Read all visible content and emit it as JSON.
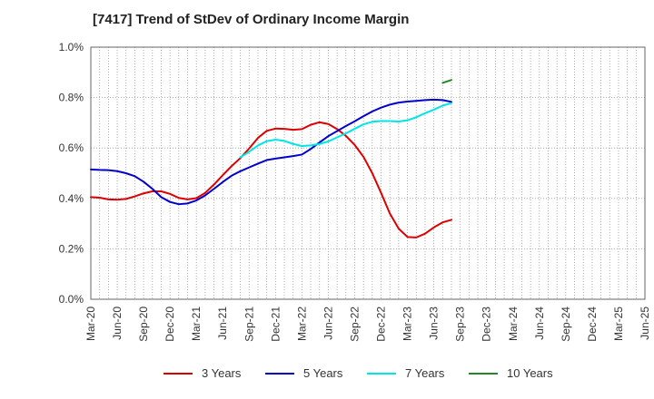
{
  "chart_data": {
    "type": "line",
    "title": "[7417]  Trend of StDev of Ordinary Income Margin",
    "xlabel": "",
    "ylabel": "",
    "ylim": [
      0,
      1.0
    ],
    "y_ticks": [
      "0.0%",
      "0.2%",
      "0.4%",
      "0.6%",
      "0.8%",
      "1.0%"
    ],
    "x_ticks": [
      "Mar-20",
      "Jun-20",
      "Sep-20",
      "Dec-20",
      "Mar-21",
      "Jun-21",
      "Sep-21",
      "Dec-21",
      "Mar-22",
      "Jun-22",
      "Sep-22",
      "Dec-22",
      "Mar-23",
      "Jun-23",
      "Sep-23",
      "Dec-23",
      "Mar-24",
      "Jun-24",
      "Sep-24",
      "Dec-24",
      "Mar-25",
      "Jun-25"
    ],
    "grid": true,
    "legend_position": "bottom",
    "series": [
      {
        "name": "3 Years",
        "color": "#dd0000",
        "values": [
          0.405,
          0.403,
          0.396,
          0.395,
          0.398,
          0.408,
          0.42,
          0.428,
          0.428,
          0.418,
          0.402,
          0.396,
          0.401,
          0.422,
          0.455,
          0.492,
          0.528,
          0.56,
          0.598,
          0.64,
          0.668,
          0.677,
          0.676,
          0.672,
          0.675,
          0.692,
          0.702,
          0.695,
          0.675,
          0.648,
          0.612,
          0.565,
          0.5,
          0.422,
          0.34,
          0.28,
          0.247,
          0.245,
          0.26,
          0.285,
          0.305,
          0.315
        ]
      },
      {
        "name": "5 Years",
        "color": "#0000cc",
        "values": [
          0.515,
          0.513,
          0.512,
          0.508,
          0.5,
          0.488,
          0.466,
          0.438,
          0.405,
          0.386,
          0.377,
          0.38,
          0.392,
          0.412,
          0.438,
          0.465,
          0.49,
          0.508,
          0.523,
          0.538,
          0.552,
          0.558,
          0.563,
          0.568,
          0.574,
          0.596,
          0.622,
          0.647,
          0.667,
          0.687,
          0.706,
          0.726,
          0.745,
          0.76,
          0.772,
          0.78,
          0.784,
          0.787,
          0.79,
          0.792,
          0.79,
          0.783
        ]
      },
      {
        "name": "7 Years",
        "color": "#00e5e5",
        "values": [
          null,
          null,
          null,
          null,
          null,
          null,
          null,
          null,
          null,
          null,
          null,
          null,
          null,
          null,
          null,
          null,
          null,
          0.563,
          0.585,
          0.61,
          0.627,
          0.633,
          0.628,
          0.616,
          0.608,
          0.61,
          0.616,
          0.626,
          0.642,
          0.658,
          0.676,
          0.694,
          0.704,
          0.707,
          0.707,
          0.705,
          0.71,
          0.722,
          0.738,
          0.752,
          0.768,
          0.778
        ]
      },
      {
        "name": "10 Years",
        "color": "#228822",
        "values": [
          null,
          null,
          null,
          null,
          null,
          null,
          null,
          null,
          null,
          null,
          null,
          null,
          null,
          null,
          null,
          null,
          null,
          null,
          null,
          null,
          null,
          null,
          null,
          null,
          null,
          null,
          null,
          null,
          null,
          null,
          null,
          null,
          null,
          null,
          null,
          null,
          null,
          null,
          null,
          null,
          0.858,
          0.87
        ]
      }
    ]
  }
}
